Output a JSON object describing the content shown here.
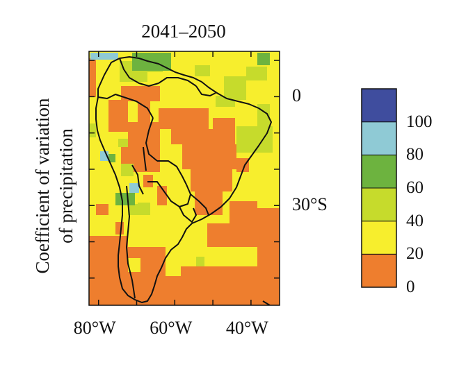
{
  "title": "2041–2050",
  "y_axis_label_lines": [
    "Coefficient of variation",
    "of precipitation"
  ],
  "lat_ticks": [
    {
      "label": "0",
      "lat": 0
    },
    {
      "label": "30°S",
      "lat": -30
    }
  ],
  "lon_ticks": [
    {
      "label": "80°W",
      "lon": -80
    },
    {
      "label": "60°W",
      "lon": -60
    },
    {
      "label": "40°W",
      "lon": -40
    }
  ],
  "colorbar": {
    "labels": [
      "0",
      "20",
      "40",
      "60",
      "80",
      "100"
    ],
    "classes": [
      {
        "range": [
          0,
          20
        ],
        "color": "#EE7E2E"
      },
      {
        "range": [
          20,
          40
        ],
        "color": "#F7EE2D"
      },
      {
        "range": [
          40,
          60
        ],
        "color": "#C6DB2C"
      },
      {
        "range": [
          60,
          80
        ],
        "color": "#6DB33F"
      },
      {
        "range": [
          80,
          100
        ],
        "color": "#8FCAD5"
      },
      {
        "range": [
          100,
          120
        ],
        "color": "#3F4D9E"
      }
    ]
  },
  "map": {
    "region": "South America",
    "lon_range": [
      -82.5,
      -32.5
    ],
    "lat_range": [
      -57.5,
      12.5
    ],
    "background_class": "20-40"
  }
}
